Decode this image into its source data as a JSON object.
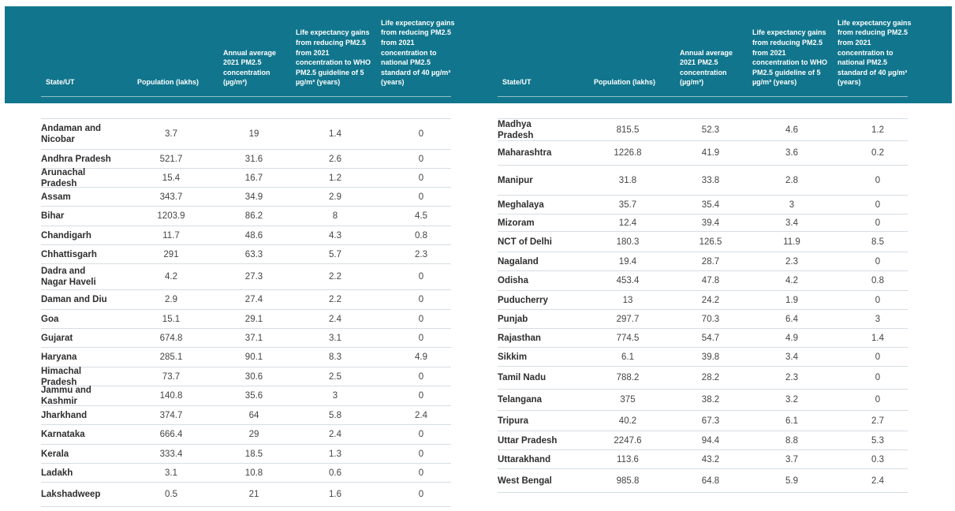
{
  "header": {
    "state": "State/UT",
    "population": "Population (lakhs)",
    "annual_avg": "Annual average 2021 PM2.5 concentration (µg/m³)",
    "who_gain": "Life expectancy gains from reducing PM2.5 from 2021 concentration to WHO PM2.5 guideline of 5 µg/m³ (years)",
    "national_gain": "Life expectancy gains from reducing PM2.5 from 2021 concentration to national PM2.5 standard of 40 µg/m³ (years)"
  },
  "left_rows": [
    {
      "state": "Andaman and Nicobar",
      "pop": "3.7",
      "avg": "19",
      "who": "1.4",
      "nat": "0"
    },
    {
      "state": "Andhra Pradesh",
      "pop": "521.7",
      "avg": "31.6",
      "who": "2.6",
      "nat": "0"
    },
    {
      "state": "Arunachal Pradesh",
      "pop": "15.4",
      "avg": "16.7",
      "who": "1.2",
      "nat": "0"
    },
    {
      "state": "Assam",
      "pop": "343.7",
      "avg": "34.9",
      "who": "2.9",
      "nat": "0"
    },
    {
      "state": "Bihar",
      "pop": "1203.9",
      "avg": "86.2",
      "who": "8",
      "nat": "4.5"
    },
    {
      "state": "Chandigarh",
      "pop": "11.7",
      "avg": "48.6",
      "who": "4.3",
      "nat": "0.8"
    },
    {
      "state": "Chhattisgarh",
      "pop": "291",
      "avg": "63.3",
      "who": "5.7",
      "nat": "2.3"
    },
    {
      "state": "Dadra and Nagar Haveli",
      "pop": "4.2",
      "avg": "27.3",
      "who": "2.2",
      "nat": "0"
    },
    {
      "state": "Daman and Diu",
      "pop": "2.9",
      "avg": "27.4",
      "who": "2.2",
      "nat": "0"
    },
    {
      "state": "Goa",
      "pop": "15.1",
      "avg": "29.1",
      "who": "2.4",
      "nat": "0"
    },
    {
      "state": "Gujarat",
      "pop": "674.8",
      "avg": "37.1",
      "who": "3.1",
      "nat": "0"
    },
    {
      "state": "Haryana",
      "pop": "285.1",
      "avg": "90.1",
      "who": "8.3",
      "nat": "4.9"
    },
    {
      "state": "Himachal Pradesh",
      "pop": "73.7",
      "avg": "30.6",
      "who": "2.5",
      "nat": "0"
    },
    {
      "state": "Jammu and Kashmir",
      "pop": "140.8",
      "avg": "35.6",
      "who": "3",
      "nat": "0"
    },
    {
      "state": "Jharkhand",
      "pop": "374.7",
      "avg": "64",
      "who": "5.8",
      "nat": "2.4"
    },
    {
      "state": "Karnataka",
      "pop": "666.4",
      "avg": "29",
      "who": "2.4",
      "nat": "0"
    },
    {
      "state": "Kerala",
      "pop": "333.4",
      "avg": "18.5",
      "who": "1.3",
      "nat": "0"
    },
    {
      "state": "Ladakh",
      "pop": "3.1",
      "avg": "10.8",
      "who": "0.6",
      "nat": "0"
    },
    {
      "state": "Lakshadweep",
      "pop": "0.5",
      "avg": "21",
      "who": "1.6",
      "nat": "0"
    }
  ],
  "right_rows": [
    {
      "state": "Madhya Pradesh",
      "pop": "815.5",
      "avg": "52.3",
      "who": "4.6",
      "nat": "1.2"
    },
    {
      "state": "Maharashtra",
      "pop": "1226.8",
      "avg": "41.9",
      "who": "3.6",
      "nat": "0.2"
    },
    {
      "state": "Manipur",
      "pop": "31.8",
      "avg": "33.8",
      "who": "2.8",
      "nat": "0"
    },
    {
      "state": "Meghalaya",
      "pop": "35.7",
      "avg": "35.4",
      "who": "3",
      "nat": "0"
    },
    {
      "state": "Mizoram",
      "pop": "12.4",
      "avg": "39.4",
      "who": "3.4",
      "nat": "0"
    },
    {
      "state": "NCT of Delhi",
      "pop": "180.3",
      "avg": "126.5",
      "who": "11.9",
      "nat": "8.5"
    },
    {
      "state": "Nagaland",
      "pop": "19.4",
      "avg": "28.7",
      "who": "2.3",
      "nat": "0"
    },
    {
      "state": "Odisha",
      "pop": "453.4",
      "avg": "47.8",
      "who": "4.2",
      "nat": "0.8"
    },
    {
      "state": "Puducherry",
      "pop": "13",
      "avg": "24.2",
      "who": "1.9",
      "nat": "0"
    },
    {
      "state": "Punjab",
      "pop": "297.7",
      "avg": "70.3",
      "who": "6.4",
      "nat": "3"
    },
    {
      "state": "Rajasthan",
      "pop": "774.5",
      "avg": "54.7",
      "who": "4.9",
      "nat": "1.4"
    },
    {
      "state": "Sikkim",
      "pop": "6.1",
      "avg": "39.8",
      "who": "3.4",
      "nat": "0"
    },
    {
      "state": "Tamil Nadu",
      "pop": "788.2",
      "avg": "28.2",
      "who": "2.3",
      "nat": "0"
    },
    {
      "state": "Telangana",
      "pop": "375",
      "avg": "38.2",
      "who": "3.2",
      "nat": "0"
    },
    {
      "state": "Tripura",
      "pop": "40.2",
      "avg": "67.3",
      "who": "6.1",
      "nat": "2.7"
    },
    {
      "state": "Uttar Pradesh",
      "pop": "2247.6",
      "avg": "94.4",
      "who": "8.8",
      "nat": "5.3"
    },
    {
      "state": "Uttarakhand",
      "pop": "113.6",
      "avg": "43.2",
      "who": "3.7",
      "nat": "0.3"
    },
    {
      "state": "West Bengal",
      "pop": "985.8",
      "avg": "64.8",
      "who": "5.9",
      "nat": "2.4"
    }
  ]
}
